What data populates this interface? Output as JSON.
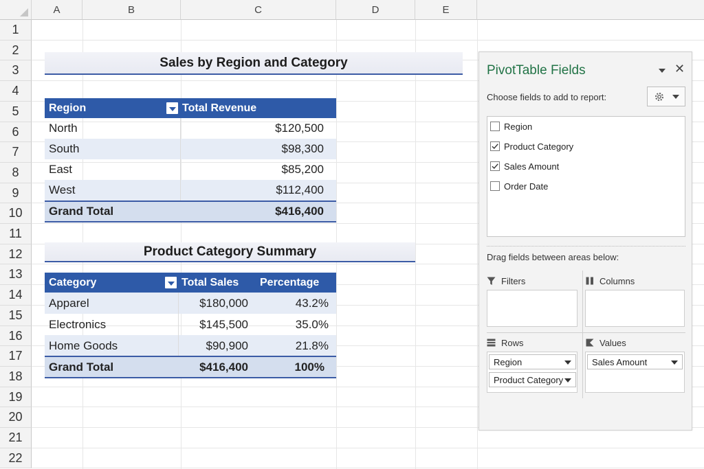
{
  "sheet": {
    "columns": [
      "A",
      "B",
      "C",
      "D",
      "E"
    ],
    "rows": [
      "1",
      "2",
      "3",
      "4",
      "5",
      "6",
      "7",
      "8",
      "9",
      "10",
      "11",
      "12",
      "13",
      "14",
      "15",
      "16",
      "17",
      "18",
      "19",
      "20",
      "21",
      "22"
    ]
  },
  "region_table": {
    "title": "Sales by Region and Category",
    "headers": {
      "label": "Region",
      "value": "Total Revenue"
    },
    "rows": [
      {
        "label": "North",
        "value": "$120,500"
      },
      {
        "label": "South",
        "value": "$98,300"
      },
      {
        "label": "East",
        "value": "$85,200"
      },
      {
        "label": "West",
        "value": "$112,400"
      }
    ],
    "total": {
      "label": "Grand Total",
      "value": "$416,400"
    }
  },
  "category_table": {
    "title": "Product Category Summary",
    "headers": {
      "label": "Category",
      "sales": "Total Sales",
      "pct": "Percentage"
    },
    "rows": [
      {
        "label": "Apparel",
        "sales": "$180,000",
        "pct": "43.2%"
      },
      {
        "label": "Electronics",
        "sales": "$145,500",
        "pct": "35.0%"
      },
      {
        "label": "Home Goods",
        "sales": "$90,900",
        "pct": "21.8%"
      }
    ],
    "total": {
      "label": "Grand Total",
      "sales": "$416,400",
      "pct": "100%"
    }
  },
  "field_pane": {
    "title": "PivotTable Fields",
    "close": "✕",
    "subtitle": "Choose fields to add to report:",
    "fields": [
      {
        "label": "Region",
        "checked": false
      },
      {
        "label": "Product Category",
        "checked": true
      },
      {
        "label": "Sales Amount",
        "checked": true
      },
      {
        "label": "Order Date",
        "checked": false
      }
    ],
    "drag_label": "Drag fields between areas below:",
    "areas": {
      "filters": "Filters",
      "columns": "Columns",
      "rows": "Rows",
      "values": "Values"
    },
    "rows_items": [
      "Region",
      "Product Category"
    ],
    "values_items": [
      "Sales Amount"
    ],
    "accent": "#217346",
    "table_header_color": "#2e5aa8"
  }
}
